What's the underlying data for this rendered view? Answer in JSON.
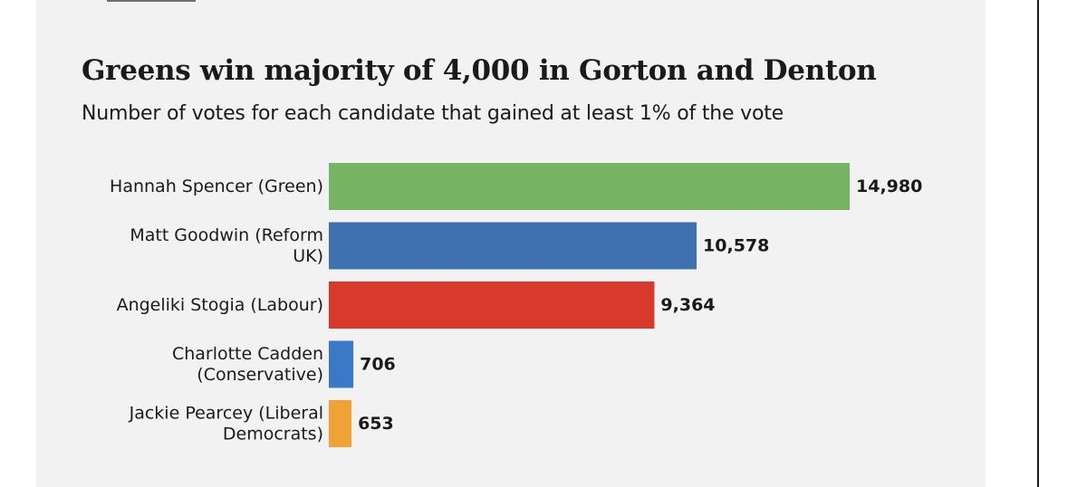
{
  "chart_data": {
    "type": "bar",
    "orientation": "horizontal",
    "title": "Greens win majority of 4,000 in Gorton and Denton",
    "subtitle": "Number of votes for each candidate that gained at least 1% of the vote",
    "xlabel": "",
    "ylabel": "",
    "xlim": [
      0,
      14980
    ],
    "grid": false,
    "categories": [
      [
        "Hannah Spencer (Green)"
      ],
      [
        "Matt Goodwin (Reform",
        "UK)"
      ],
      [
        "Angeliki Stogia (Labour)"
      ],
      [
        "Charlotte Cadden",
        "(Conservative)"
      ],
      [
        "Jackie Pearcey (Liberal",
        "Democrats)"
      ]
    ],
    "values": [
      14980,
      10578,
      9364,
      706,
      653
    ],
    "value_labels": [
      "14,980",
      "10,578",
      "9,364",
      "706",
      "653"
    ],
    "colors": [
      "#77b466",
      "#3f70b0",
      "#d9392b",
      "#3b78c8",
      "#f0a236"
    ]
  }
}
